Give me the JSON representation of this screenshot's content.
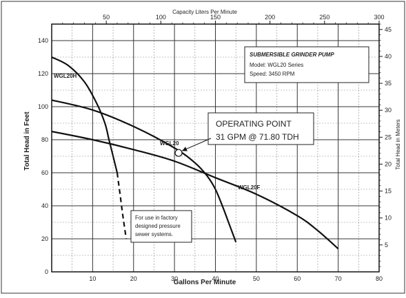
{
  "chart_data": {
    "type": "line",
    "title": "SUBMERSIBLE GRINDER PUMP",
    "info_lines": [
      "Model:  WGL20 Series",
      "Speed:  3450 RPM"
    ],
    "xlabel": "Gallons Per Minute",
    "ylabel": "Total Head in Feet",
    "x2label": "Capacity Liters Per Minute",
    "y2label": "Total Head in Meters",
    "xlim": [
      0,
      80
    ],
    "ylim": [
      0,
      150
    ],
    "x2lim": [
      0,
      300
    ],
    "y2lim": [
      0,
      46
    ],
    "x_ticks": [
      "10",
      "20",
      "30",
      "40",
      "50",
      "60",
      "70",
      "80"
    ],
    "y_ticks": [
      "0",
      "20",
      "40",
      "60",
      "80",
      "100",
      "120",
      "140"
    ],
    "x2_ticks": [
      "50",
      "100",
      "150",
      "200",
      "250",
      "300"
    ],
    "y2_ticks": [
      "5",
      "10",
      "15",
      "20",
      "25",
      "30",
      "35",
      "40",
      "45"
    ],
    "grid": true,
    "series": [
      {
        "name": "WGL20H",
        "dashed": false,
        "x": [
          0,
          4,
          8,
          11,
          13,
          14,
          15,
          16
        ],
        "y": [
          130,
          125,
          115,
          102,
          90,
          80,
          70,
          60
        ]
      },
      {
        "name": "WGL20H",
        "dashed": true,
        "x": [
          16,
          16.8,
          17.5,
          18.2
        ],
        "y": [
          60,
          45,
          32,
          20
        ]
      },
      {
        "name": "WGL20",
        "dashed": false,
        "x": [
          0,
          10,
          20,
          30,
          35,
          38,
          40,
          42,
          43.5,
          45
        ],
        "y": [
          104,
          98,
          88,
          75,
          66,
          58,
          50,
          38,
          28,
          18
        ]
      },
      {
        "name": "WGL20F",
        "dashed": false,
        "x": [
          0,
          10,
          20,
          30,
          40,
          50,
          60,
          65,
          70
        ],
        "y": [
          85,
          80,
          74,
          67,
          57,
          47,
          34,
          25,
          14
        ]
      }
    ],
    "annotations": {
      "operating_point": {
        "label": "OPERATING POINT",
        "detail": "31 GPM @ 71.80 TDH",
        "x": 31,
        "y": 72
      },
      "series_labels": [
        "WGL20H",
        "WGL20",
        "WGL20F"
      ],
      "note_lines": [
        "For use in factory",
        "designed pressure",
        "sewer systems."
      ]
    }
  }
}
